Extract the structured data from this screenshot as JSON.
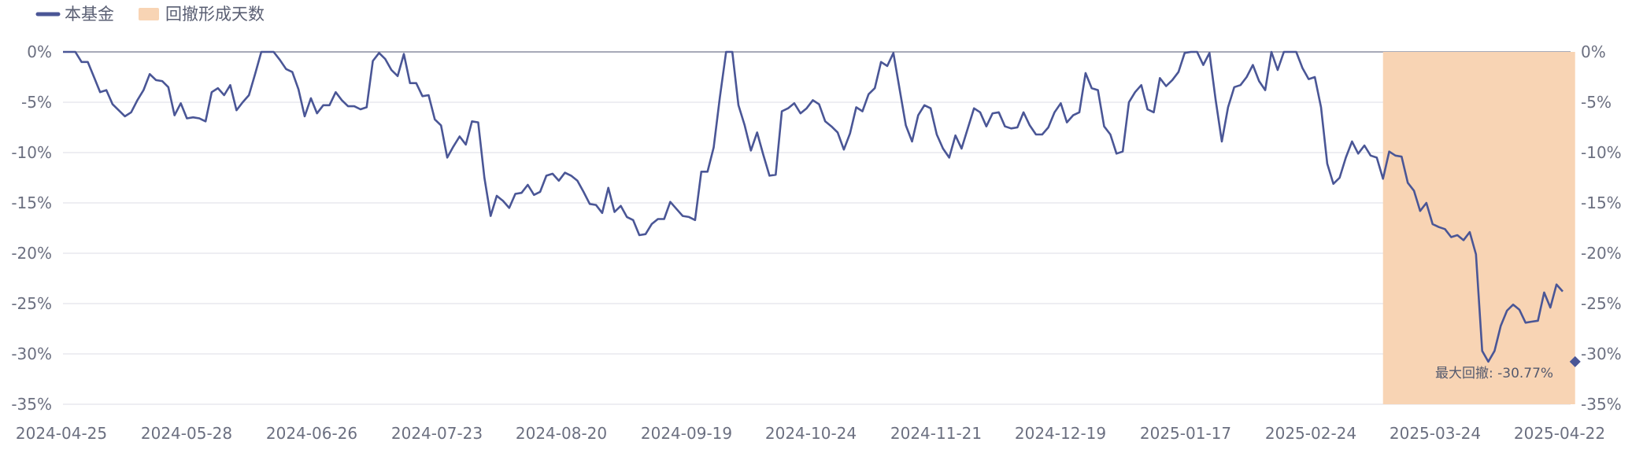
{
  "legend": {
    "fund_label": "本基金",
    "drawdown_label": "回撤形成天数"
  },
  "colors": {
    "line": "#4a5696",
    "drawdown_band": "#f8d4b4",
    "grid": "#e9e9ee",
    "zero_line": "#8a8ea0",
    "axis_text": "#6b6f80"
  },
  "chart_data": {
    "type": "line",
    "title": "",
    "xlabel": "",
    "ylabel": "",
    "ylim": [
      -35,
      0
    ],
    "y_ticks": [
      0,
      -5,
      -10,
      -15,
      -20,
      -25,
      -30,
      -35
    ],
    "y_tick_labels": [
      "0%",
      "-5%",
      "-10%",
      "-15%",
      "-20%",
      "-25%",
      "-30%",
      "-35%"
    ],
    "x_tick_labels": [
      "2024-04-25",
      "2024-05-28",
      "2024-06-26",
      "2024-07-23",
      "2024-08-20",
      "2024-09-19",
      "2024-10-24",
      "2024-11-21",
      "2024-12-19",
      "2025-01-17",
      "2025-02-24",
      "2025-03-24",
      "2025-04-22"
    ],
    "grid": true,
    "legend_position": "top-left",
    "series": [
      {
        "name": "本基金",
        "values": [
          0,
          0,
          0,
          -1,
          -1,
          -2.5,
          -4,
          -3.8,
          -5.2,
          -5.8,
          -6.4,
          -6.0,
          -4.8,
          -3.8,
          -2.2,
          -2.8,
          -2.9,
          -3.5,
          -6.3,
          -5.1,
          -6.6,
          -6.5,
          -6.6,
          -6.9,
          -4.0,
          -3.6,
          -4.3,
          -3.3,
          -5.8,
          -5.0,
          -4.3,
          -2.2,
          0,
          0,
          0,
          -0.8,
          -1.7,
          -2.0,
          -3.7,
          -6.4,
          -4.6,
          -6.1,
          -5.3,
          -5.3,
          -4.0,
          -4.8,
          -5.4,
          -5.4,
          -5.7,
          -5.5,
          -0.9,
          -0.1,
          -0.7,
          -1.8,
          -2.4,
          -0.2,
          -3.1,
          -3.1,
          -4.4,
          -4.3,
          -6.7,
          -7.3,
          -10.5,
          -9.4,
          -8.4,
          -9.2,
          -6.9,
          -7.0,
          -12.5,
          -16.3,
          -14.3,
          -14.8,
          -15.5,
          -14.1,
          -14.0,
          -13.2,
          -14.2,
          -13.9,
          -12.3,
          -12.1,
          -12.8,
          -12.0,
          -12.3,
          -12.8,
          -13.9,
          -15.1,
          -15.2,
          -16.0,
          -13.5,
          -15.9,
          -15.3,
          -16.4,
          -16.7,
          -18.2,
          -18.1,
          -17.1,
          -16.6,
          -16.6,
          -14.9,
          -15.6,
          -16.3,
          -16.4,
          -16.7,
          -11.9,
          -11.9,
          -9.5,
          -4.5,
          0,
          0,
          -5.3,
          -7.3,
          -9.8,
          -8.0,
          -10.2,
          -12.3,
          -12.2,
          -5.9,
          -5.6,
          -5.1,
          -6.1,
          -5.6,
          -4.8,
          -5.2,
          -6.9,
          -7.4,
          -8.0,
          -9.7,
          -8.1,
          -5.5,
          -5.9,
          -4.2,
          -3.6,
          -1.0,
          -1.4,
          -0.1,
          -3.7,
          -7.3,
          -8.9,
          -6.3,
          -5.3,
          -5.6,
          -8.2,
          -9.6,
          -10.5,
          -8.3,
          -9.6,
          -7.6,
          -5.6,
          -6.0,
          -7.4,
          -6.1,
          -6.0,
          -7.4,
          -7.6,
          -7.5,
          -6.0,
          -7.3,
          -8.2,
          -8.2,
          -7.5,
          -6.0,
          -5.1,
          -7.0,
          -6.3,
          -6.0,
          -2.1,
          -3.6,
          -3.8,
          -7.4,
          -8.2,
          -10.1,
          -9.9,
          -5.0,
          -4.0,
          -3.3,
          -5.7,
          -6.0,
          -2.6,
          -3.4,
          -2.8,
          -2.0,
          -0.1,
          0,
          0,
          -1.3,
          -0.1,
          -4.8,
          -8.9,
          -5.5,
          -3.5,
          -3.3,
          -2.5,
          -1.3,
          -2.9,
          -3.8,
          0,
          -1.8,
          0,
          0,
          0,
          -1.6,
          -2.7,
          -2.5,
          -5.5,
          -11.1,
          -13.1,
          -12.5,
          -10.5,
          -8.9,
          -10.1,
          -9.3,
          -10.3,
          -10.5,
          -12.6,
          -9.9,
          -10.3,
          -10.4,
          -13.0,
          -13.8,
          -15.8,
          -15.0,
          -17.1,
          -17.4,
          -17.6,
          -18.4,
          -18.2,
          -18.7,
          -17.9,
          -20.1,
          -29.7,
          -30.77,
          -29.7,
          -27.2,
          -25.7,
          -25.1,
          -25.6,
          -26.9,
          -26.8,
          -26.7,
          -23.9,
          -25.4,
          -23.1,
          -23.8
        ]
      }
    ],
    "drawdown_period": {
      "start_label": "2025-02-24",
      "start_index": 213,
      "end_index": 244
    },
    "max_drawdown": {
      "index": 244,
      "value": -30.77,
      "label": "最大回撤: -30.77%"
    }
  }
}
